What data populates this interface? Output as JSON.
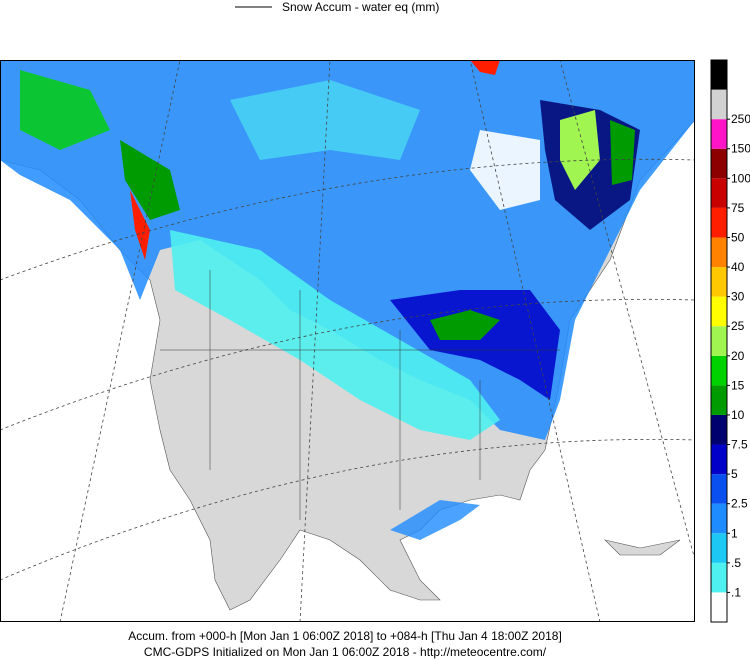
{
  "legend": {
    "label": "Snow Accum - water eq (mm)"
  },
  "colorbar": {
    "colors": [
      "#ffffff",
      "#4ff0f0",
      "#1ec8f5",
      "#1e8cff",
      "#0a50f0",
      "#0000c8",
      "#00006e",
      "#009b00",
      "#00d200",
      "#a0f550",
      "#ffff00",
      "#ffc800",
      "#ff8200",
      "#ff1e00",
      "#c80000",
      "#8c0000",
      "#ff14c8",
      "#d2d2d2",
      "#000000"
    ],
    "ticks": [
      {
        "value": 0.1,
        "label": ".1"
      },
      {
        "value": 0.5,
        "label": ".5"
      },
      1,
      2.5,
      5,
      7.5,
      10,
      15,
      20,
      25,
      30,
      40,
      50,
      75,
      100,
      150,
      250
    ]
  },
  "footer": {
    "line1": "Accum. from +000-h [Mon Jan 1 06:00Z 2018] to +084-h [Thu Jan 4 18:00Z 2018]",
    "line2": "CMC-GDPS Initialized on Mon Jan 1 06:00Z 2018 - http://meteocentre.com/"
  }
}
